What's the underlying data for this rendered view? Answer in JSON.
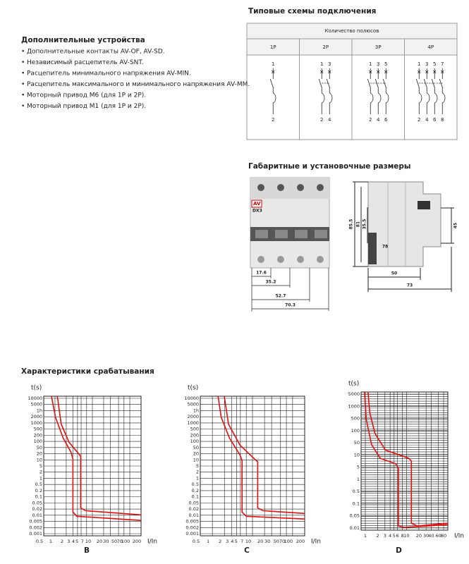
{
  "accessories": {
    "title": "Дополнительные устройства",
    "items": [
      "Дополнительные  контакты AV-OF, AV-SD.",
      "Независимый расцепитель  AV-SNT.",
      "Расцепитель минимального напряжения AV-MIN.",
      "Расцепитель максимального и минимального напряжения AV-MM.",
      "Моторный привод М6 (для 1P и 2P).",
      "Моторный привод М1 (для 1P и 2P)."
    ]
  },
  "schemes": {
    "title": "Типовые схемы подключения",
    "header": "Количество полюсов",
    "columns": [
      {
        "label": "1P",
        "top": [
          "1"
        ],
        "bottom": [
          "2"
        ]
      },
      {
        "label": "2P",
        "top": [
          "1",
          "3"
        ],
        "bottom": [
          "2",
          "4"
        ]
      },
      {
        "label": "3P",
        "top": [
          "1",
          "3",
          "5"
        ],
        "bottom": [
          "2",
          "4",
          "6"
        ]
      },
      {
        "label": "4P",
        "top": [
          "1",
          "3",
          "5",
          "7"
        ],
        "bottom": [
          "2",
          "4",
          "6",
          "8"
        ]
      }
    ]
  },
  "dimensions": {
    "title": "Габаритные и установочные размеры",
    "device_text": "DX3",
    "front_widths": [
      "17.6",
      "35.2",
      "52.7",
      "70.3"
    ],
    "side": {
      "height_total": "85.5",
      "height_body": "81",
      "height_front": "35.5",
      "height_right": "45",
      "depth": "78",
      "width_front": "50",
      "width_total": "73"
    }
  },
  "trip_curves": {
    "title": "Характеристики срабатывания",
    "charts": [
      {
        "caption": "B",
        "y_label": "t(s)",
        "x_label": "I/In",
        "yticks": [
          "10000",
          "5000",
          "1h",
          "2000",
          "1000",
          "500",
          "200",
          "100",
          "50",
          "20",
          "10",
          "5",
          "2",
          "1",
          "0.5",
          "0.2",
          "0.1",
          "0.05",
          "0.02",
          "0.01",
          "0.005",
          "0.002",
          "0.001"
        ],
        "xticks": [
          "0.5",
          "1",
          "2",
          "3",
          "4",
          "5",
          "7",
          "10",
          "20",
          "30",
          "50",
          "70",
          "100",
          "200"
        ]
      },
      {
        "caption": "C",
        "y_label": "t(s)",
        "x_label": "I/In",
        "yticks": [
          "10000",
          "5000",
          "1h",
          "2000",
          "1000",
          "500",
          "200",
          "100",
          "50",
          "20",
          "10",
          "5",
          "2",
          "1",
          "0.5",
          "0.2",
          "0.1",
          "0.05",
          "0.02",
          "0.01",
          "0.005",
          "0.002",
          "0.001"
        ],
        "xticks": [
          "0.5",
          "1",
          "2",
          "3",
          "4",
          "5",
          "7",
          "10",
          "20",
          "30",
          "50",
          "70",
          "100",
          "200"
        ]
      },
      {
        "caption": "D",
        "y_label": "t(s)",
        "x_label": "I/In",
        "yticks": [
          "5000",
          "1000",
          "500",
          "100",
          "50",
          "10",
          "5",
          "1",
          "0.5",
          "0.1",
          "0.05",
          "0.01"
        ],
        "xticks": [
          "1",
          "2",
          "3",
          "4",
          "5",
          "6",
          "8",
          "10",
          "20",
          "30",
          "40",
          "60",
          "80"
        ]
      }
    ]
  }
}
